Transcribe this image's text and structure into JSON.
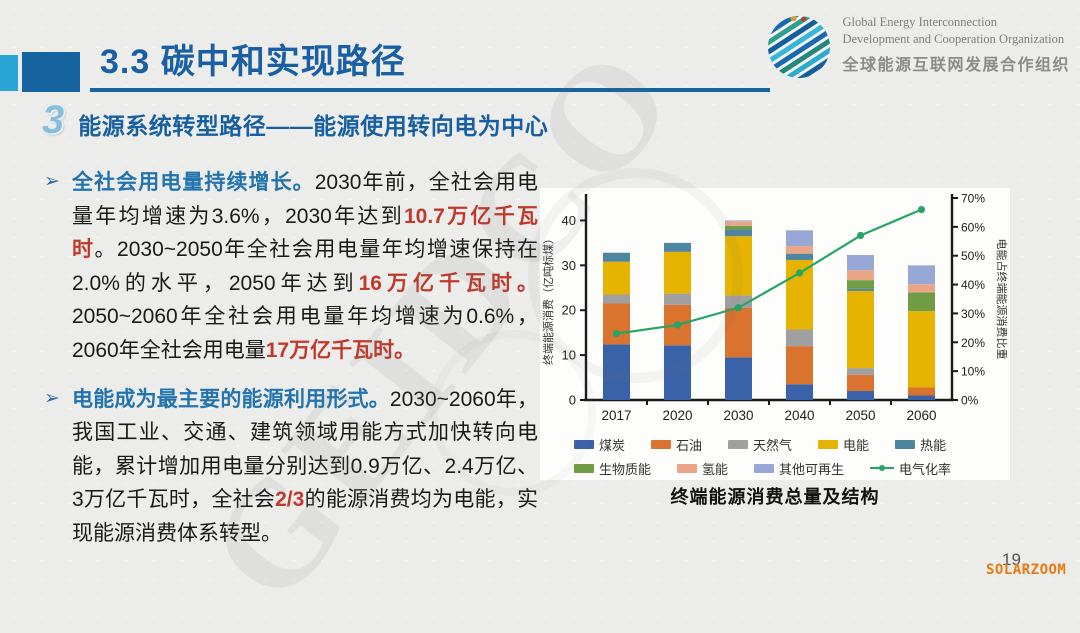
{
  "slide": {
    "title": "3.3 碳中和实现路径",
    "section_number": "3",
    "section_title": "能源系统转型路径——能源使用转向电为中心",
    "bullet_marker": "➢",
    "page_number": "19",
    "photo_watermark": "SOLARZOOM",
    "background_watermark": "GEIDCO"
  },
  "logo": {
    "org_en_line1": "Global Energy Interconnection",
    "org_en_line2": "Development and Cooperation Organization",
    "org_zh": "全球能源互联网发展合作组织"
  },
  "bullets": [
    {
      "segments": [
        {
          "text": "全社会用电量持续增长。",
          "style": "lead"
        },
        {
          "text": "2030年前，全社会用电量年均增速为3.6%，2030年达到",
          "style": "normal"
        },
        {
          "text": "10.7万亿千瓦时",
          "style": "em"
        },
        {
          "text": "。2030~2050年全社会用电量年均增速保持在2.0%的水平，2050年达到",
          "style": "normal"
        },
        {
          "text": "16万亿千瓦时。",
          "style": "em"
        },
        {
          "text": "2050~2060年全社会用电量年均增速为0.6%，2060年全社会用电量",
          "style": "normal"
        },
        {
          "text": "17万亿千瓦时。",
          "style": "em"
        }
      ]
    },
    {
      "segments": [
        {
          "text": "电能成为最主要的能源利用形式。",
          "style": "lead"
        },
        {
          "text": "2030~2060年，我国工业、交通、建筑领域用能方式加快转向电能，累计增加用电量分别达到0.9万亿、2.4万亿、3万亿千瓦时，全社会",
          "style": "normal"
        },
        {
          "text": "2/3",
          "style": "em"
        },
        {
          "text": "的能源消费均为电能，实现能源消费体系转型。",
          "style": "normal"
        }
      ]
    }
  ],
  "chart_caption": "终端能源消费总量及结构",
  "chart_data": {
    "type": "bar",
    "subtype": "stacked-bars-with-line",
    "title": "终端能源消费总量及结构",
    "categories": [
      "2017",
      "2020",
      "2030",
      "2040",
      "2050",
      "2060"
    ],
    "series": [
      {
        "name": "煤炭",
        "color": "#3a62a8",
        "values": [
          12.4,
          12.2,
          9.5,
          3.5,
          2.0,
          1.0
        ]
      },
      {
        "name": "石油",
        "color": "#d9732e",
        "values": [
          9.1,
          9.0,
          11.0,
          8.5,
          3.6,
          1.8
        ]
      },
      {
        "name": "天然气",
        "color": "#a0a0a0",
        "values": [
          2.0,
          2.5,
          2.8,
          3.7,
          1.5,
          0
        ]
      },
      {
        "name": "电能",
        "color": "#e5b300",
        "values": [
          7.3,
          9.3,
          13.2,
          15.5,
          17.2,
          17.0
        ]
      },
      {
        "name": "热能",
        "color": "#4e86a0",
        "values": [
          2.0,
          2.0,
          1.5,
          1.4,
          0.5,
          0
        ]
      },
      {
        "name": "生物质能",
        "color": "#6f9c44",
        "values": [
          0,
          0,
          0.8,
          0,
          1.9,
          4.2
        ]
      },
      {
        "name": "氢能",
        "color": "#eba687",
        "values": [
          0,
          0,
          1.0,
          1.7,
          2.2,
          1.8
        ]
      },
      {
        "name": "其他可再生",
        "color": "#97a8d6",
        "values": [
          0,
          0,
          0.2,
          3.5,
          3.4,
          4.2
        ]
      }
    ],
    "line_series": {
      "name": "电气化率",
      "color": "#27a567",
      "axis": "right",
      "values_pct": [
        23,
        26,
        32,
        44,
        57,
        66
      ]
    },
    "ylabel_left": "终端能源消费（亿吨标煤）",
    "ylabel_right": "电能占终端能源消费比重",
    "yaxis_left": {
      "min": 0,
      "max": 45,
      "ticks": [
        0,
        10,
        20,
        30,
        40
      ]
    },
    "yaxis_right": {
      "min": 0,
      "max": 70,
      "tick_step": 10,
      "tick_suffix": "%"
    },
    "grid": false,
    "legend_position": "bottom"
  }
}
